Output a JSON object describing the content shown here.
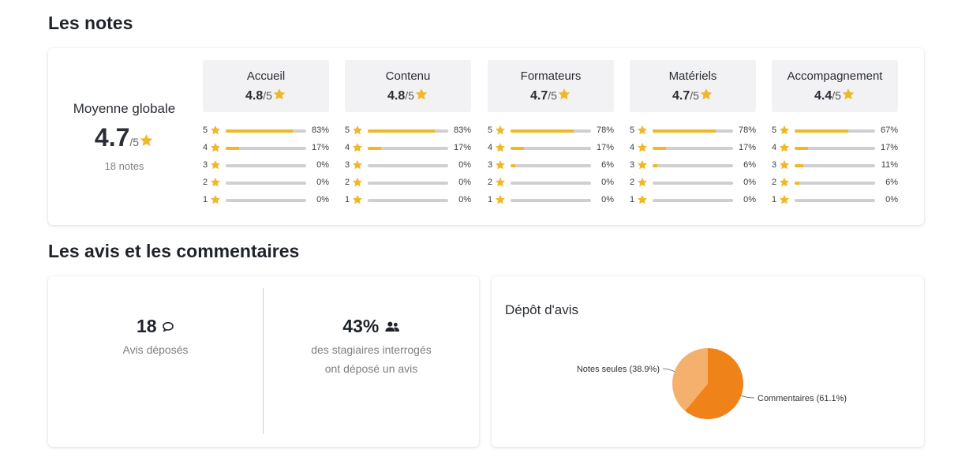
{
  "notes_section": {
    "title": "Les notes",
    "global": {
      "label": "Moyenne globale",
      "value": "4.7",
      "denominator": "/5",
      "count": "18 notes"
    },
    "categories": [
      {
        "name": "Accueil",
        "score": "4.8",
        "denominator": "/5",
        "rows": [
          {
            "level": "5",
            "pct": "83%",
            "value": 83
          },
          {
            "level": "4",
            "pct": "17%",
            "value": 17
          },
          {
            "level": "3",
            "pct": "0%",
            "value": 0
          },
          {
            "level": "2",
            "pct": "0%",
            "value": 0
          },
          {
            "level": "1",
            "pct": "0%",
            "value": 0
          }
        ]
      },
      {
        "name": "Contenu",
        "score": "4.8",
        "denominator": "/5",
        "rows": [
          {
            "level": "5",
            "pct": "83%",
            "value": 83
          },
          {
            "level": "4",
            "pct": "17%",
            "value": 17
          },
          {
            "level": "3",
            "pct": "0%",
            "value": 0
          },
          {
            "level": "2",
            "pct": "0%",
            "value": 0
          },
          {
            "level": "1",
            "pct": "0%",
            "value": 0
          }
        ]
      },
      {
        "name": "Formateurs",
        "score": "4.7",
        "denominator": "/5",
        "rows": [
          {
            "level": "5",
            "pct": "78%",
            "value": 78
          },
          {
            "level": "4",
            "pct": "17%",
            "value": 17
          },
          {
            "level": "3",
            "pct": "6%",
            "value": 6
          },
          {
            "level": "2",
            "pct": "0%",
            "value": 0
          },
          {
            "level": "1",
            "pct": "0%",
            "value": 0
          }
        ]
      },
      {
        "name": "Matériels",
        "score": "4.7",
        "denominator": "/5",
        "rows": [
          {
            "level": "5",
            "pct": "78%",
            "value": 78
          },
          {
            "level": "4",
            "pct": "17%",
            "value": 17
          },
          {
            "level": "3",
            "pct": "6%",
            "value": 6
          },
          {
            "level": "2",
            "pct": "0%",
            "value": 0
          },
          {
            "level": "1",
            "pct": "0%",
            "value": 0
          }
        ]
      },
      {
        "name": "Accompagnement",
        "score": "4.4",
        "denominator": "/5",
        "rows": [
          {
            "level": "5",
            "pct": "67%",
            "value": 67
          },
          {
            "level": "4",
            "pct": "17%",
            "value": 17
          },
          {
            "level": "3",
            "pct": "11%",
            "value": 11
          },
          {
            "level": "2",
            "pct": "6%",
            "value": 6
          },
          {
            "level": "1",
            "pct": "0%",
            "value": 0
          }
        ]
      }
    ]
  },
  "avis_section": {
    "title": "Les avis et les commentaires",
    "deposes": {
      "value": "18",
      "label": "Avis déposés",
      "icon": "comment-icon"
    },
    "taux": {
      "value": "43%",
      "line1": "des stagiaires interrogés",
      "line2": "ont déposé un avis",
      "icon": "users-icon"
    },
    "depot": {
      "title": "Dépôt d'avis"
    }
  },
  "colors": {
    "star": "#f0b829",
    "bar_fill": "#f0b829",
    "bar_track": "#cfcfcf",
    "pie_dark": "#f0821a",
    "pie_light": "#f5b06d"
  },
  "chart_data": {
    "type": "pie",
    "title": "Dépôt d'avis",
    "slices": [
      {
        "label": "Commentaires (61.1%)",
        "value": 61.1,
        "color": "#f0821a"
      },
      {
        "label": "Notes seules (38.9%)",
        "value": 38.9,
        "color": "#f5b06d"
      }
    ]
  }
}
